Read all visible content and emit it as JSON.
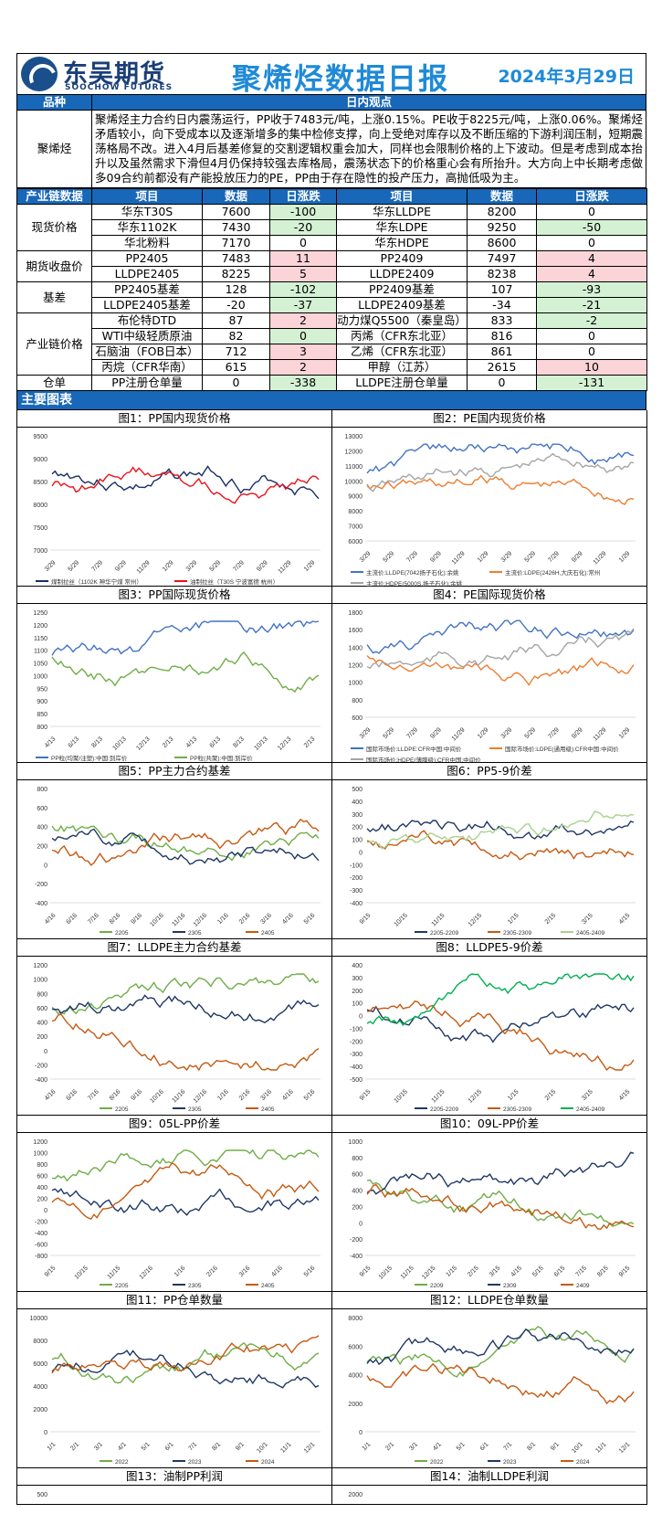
{
  "header": {
    "logo_cn": "东吴期货",
    "logo_en": "SOOCHOW FUTURES",
    "title": "聚烯烃数据日报",
    "date": "2024年3月29日"
  },
  "view": {
    "col1": "品种",
    "col2": "日内观点",
    "product": "聚烯烃",
    "text": "聚烯烃主力合约日内震荡运行，PP收于7483元/吨，上涨0.15%。PE收于8225元/吨，上涨0.06%。聚烯烃矛盾较小，向下受成本以及逐渐增多的集中检修支撑，向上受绝对库存以及不断压缩的下游利润压制，短期震荡格局不改。进入4月后基差修复的交割逻辑权重会加大，同样也会限制价格的上下波动。但是考虑到成本抬升以及虽然需求下滑但4月仍保持较强去库格局，震荡状态下的价格重心会有所抬升。大方向上中长期考虑做多09合约前都没有产能投放压力的PE，PP由于存在隐性的投产压力，高抛低吸为主。"
  },
  "table": {
    "headers": [
      "产业链数据",
      "项目",
      "数据",
      "日涨跌",
      "项目",
      "数据",
      "日涨跌"
    ],
    "groups": [
      {
        "name": "现货价格",
        "rows": [
          [
            "华东T30S",
            "7600",
            "-100",
            "g",
            "华东LLDPE",
            "8200",
            "0",
            ""
          ],
          [
            "华东1102K",
            "7430",
            "-20",
            "g",
            "华东LDPE",
            "9250",
            "-50",
            "g"
          ],
          [
            "华北粉料",
            "7170",
            "0",
            "",
            "华东HDPE",
            "8600",
            "0",
            ""
          ]
        ]
      },
      {
        "name": "期货收盘价",
        "rows": [
          [
            "PP2405",
            "7483",
            "11",
            "r",
            "PP2409",
            "7497",
            "4",
            "r"
          ],
          [
            "LLDPE2405",
            "8225",
            "5",
            "r",
            "LLDPE2409",
            "8238",
            "4",
            "r"
          ]
        ]
      },
      {
        "name": "基差",
        "rows": [
          [
            "PP2405基差",
            "128",
            "-102",
            "g",
            "PP2409基差",
            "107",
            "-93",
            "g"
          ],
          [
            "LLDPE2405基差",
            "-20",
            "-37",
            "g",
            "LLDPE2409基差",
            "-34",
            "-21",
            "g"
          ]
        ]
      },
      {
        "name": "产业链价格",
        "rows": [
          [
            "布伦特DTD",
            "87",
            "2",
            "r",
            "动力煤Q5500（秦皇岛）",
            "833",
            "-2",
            "g"
          ],
          [
            "WTI中级轻质原油",
            "82",
            "0",
            "g",
            "丙烯（CFR东北亚）",
            "816",
            "0",
            ""
          ],
          [
            "石脑油（FOB日本）",
            "712",
            "3",
            "r",
            "乙烯（CFR东北亚）",
            "861",
            "0",
            ""
          ],
          [
            "丙烷（CFR华南）",
            "615",
            "2",
            "r",
            "甲醇（江苏）",
            "2615",
            "10",
            "r"
          ]
        ]
      },
      {
        "name": "仓单",
        "rows": [
          [
            "PP注册仓单量",
            "0",
            "-338",
            "g",
            "LLDPE注册仓单量",
            "0",
            "-131",
            "g"
          ]
        ]
      }
    ]
  },
  "charts_section": "主要图表",
  "colors": {
    "blue": "#1867b8",
    "green_cell": "#d4f1d4",
    "red_cell": "#fbd4d8"
  },
  "charts": [
    {
      "caption": "图1：PP国内现货价格",
      "yticks": [
        "9500",
        "9000",
        "8500",
        "8000",
        "7500",
        "7000"
      ],
      "xticks": [
        "3/29",
        "5/29",
        "7/29",
        "9/29",
        "11/29",
        "1/29",
        "3/29",
        "5/29",
        "7/29",
        "9/29",
        "11/29",
        "1/29"
      ],
      "legend": [
        "煤制拉丝（1102K 神华宁煤 常州）",
        "油制拉丝（T30S 宁波富德 杭州）"
      ],
      "lcolors": [
        "#1a2e66",
        "#e8121b"
      ]
    },
    {
      "caption": "图2：PE国内现货价格",
      "yticks": [
        "13000",
        "12000",
        "11000",
        "10000",
        "9000",
        "8000",
        "7000",
        "6000"
      ],
      "xticks": [
        "3/29",
        "5/29",
        "7/29",
        "9/29",
        "11/29",
        "1/29",
        "3/29",
        "5/29",
        "7/29",
        "9/29",
        "11/29",
        "1/29"
      ],
      "legend": [
        "主流价:LLDPE(7042扬子石化):余姚",
        "主流价:LDPE(2426H,大庆石化):常州",
        "主流价:HDPE(5000S,扬子石化):余姚"
      ],
      "lcolors": [
        "#4472c4",
        "#ed7d31",
        "#a5a5a5"
      ]
    },
    {
      "caption": "图3：PP国际现货价格",
      "yticks": [
        "1250",
        "1200",
        "1150",
        "1100",
        "1050",
        "1000",
        "950",
        "900",
        "850",
        "800"
      ],
      "xticks": [
        "4/13",
        "6/13",
        "8/13",
        "10/13",
        "12/13",
        "2/13",
        "4/13",
        "6/13",
        "8/13",
        "10/13",
        "12/13",
        "2/13"
      ],
      "legend": [
        "PP粒(均聚/注塑):中国:到岸价",
        "PP粒(共聚):中国:到岸价"
      ],
      "lcolors": [
        "#4472c4",
        "#70ad47"
      ]
    },
    {
      "caption": "图4：PE国际现货价格",
      "yticks": [
        "1800",
        "1600",
        "1400",
        "1200",
        "1000",
        "800",
        "600"
      ],
      "xticks": [
        "3/29",
        "5/29",
        "7/29",
        "9/29",
        "11/29",
        "1/29",
        "3/29",
        "5/29",
        "7/29",
        "9/29",
        "11/29",
        "1/29"
      ],
      "legend": [
        "国际市场价:LLDPE:CFR中国:中间价",
        "国际市场价:LDPE(通用级):CFR中国:中间价",
        "国际市场价:HDPE(薄膜级):CFR中国:中间价"
      ],
      "lcolors": [
        "#4472c4",
        "#ed7d31",
        "#a5a5a5"
      ]
    },
    {
      "caption": "图5：PP主力合约基差",
      "yticks": [
        "800",
        "600",
        "400",
        "200",
        "0",
        "-200",
        "-400"
      ],
      "xticks": [
        "4/16",
        "6/16",
        "7/16",
        "8/16",
        "9/16",
        "10/16",
        "11/16",
        "12/16",
        "1/16",
        "2/16",
        "3/16",
        "4/16",
        "5/16"
      ],
      "legend": [
        "2205",
        "2305",
        "2405"
      ],
      "lcolors": [
        "#70ad47",
        "#203864",
        "#c55a11"
      ]
    },
    {
      "caption": "图6：PP5-9价差",
      "yticks": [
        "500",
        "400",
        "300",
        "200",
        "100",
        "0",
        "-100",
        "-200",
        "-300",
        "-400"
      ],
      "xticks": [
        "9/15",
        "10/15",
        "11/15",
        "12/15",
        "1/15",
        "2/15",
        "3/15",
        "4/15"
      ],
      "legend": [
        "2205-2209",
        "2305-2309",
        "2405-2409"
      ],
      "lcolors": [
        "#203864",
        "#c55a11",
        "#a9d18e"
      ]
    },
    {
      "caption": "图7：LLDPE主力合约基差",
      "yticks": [
        "1200",
        "1000",
        "800",
        "600",
        "400",
        "200",
        "0",
        "-200",
        "-400"
      ],
      "xticks": [
        "4/16",
        "6/16",
        "7/16",
        "8/16",
        "9/16",
        "10/16",
        "11/16",
        "12/16",
        "1/16",
        "2/16",
        "3/16",
        "4/16",
        "5/16"
      ],
      "legend": [
        "2205",
        "2305",
        "2405"
      ],
      "lcolors": [
        "#70ad47",
        "#203864",
        "#c55a11"
      ]
    },
    {
      "caption": "图8：LLDPE5-9价差",
      "yticks": [
        "400",
        "300",
        "200",
        "100",
        "0",
        "-100",
        "-200",
        "-300",
        "-400",
        "-500"
      ],
      "xticks": [
        "9/15",
        "10/15",
        "11/15",
        "12/15",
        "1/15",
        "2/15",
        "3/15",
        "4/15"
      ],
      "legend": [
        "2205-2209",
        "2305-2309",
        "2405-2409"
      ],
      "lcolors": [
        "#203864",
        "#c55a11",
        "#00b050"
      ]
    },
    {
      "caption": "图9：05L-PP价差",
      "yticks": [
        "1200",
        "1000",
        "800",
        "600",
        "400",
        "200",
        "0",
        "-200",
        "-400",
        "-600",
        "-800"
      ],
      "xticks": [
        "9/15",
        "10/15",
        "11/15",
        "12/16",
        "1/16",
        "2/16",
        "3/16",
        "4/16",
        "5/16"
      ],
      "legend": [
        "2205",
        "2305",
        "2405"
      ],
      "lcolors": [
        "#70ad47",
        "#203864",
        "#c55a11"
      ]
    },
    {
      "caption": "图10：09L-PP价差",
      "yticks": [
        "1000",
        "800",
        "600",
        "400",
        "200",
        "0",
        "-200",
        "-400"
      ],
      "xticks": [
        "9/15",
        "10/15",
        "11/15",
        "12/15",
        "1/15",
        "2/15",
        "3/15",
        "4/15",
        "5/15",
        "6/15",
        "7/15",
        "8/15",
        "9/15"
      ],
      "legend": [
        "2209",
        "2309",
        "2409"
      ],
      "lcolors": [
        "#70ad47",
        "#203864",
        "#c55a11"
      ]
    },
    {
      "caption": "图11：PP仓单数量",
      "yticks": [
        "10000",
        "8000",
        "6000",
        "4000",
        "2000",
        "0"
      ],
      "xticks": [
        "1/1",
        "2/1",
        "3/1",
        "4/1",
        "5/1",
        "6/1",
        "7/1",
        "8/1",
        "9/1",
        "10/1",
        "11/1",
        "12/1"
      ],
      "legend": [
        "2022",
        "2023",
        "2024"
      ],
      "lcolors": [
        "#70ad47",
        "#203864",
        "#c55a11"
      ]
    },
    {
      "caption": "图12：LLDPE仓单数量",
      "yticks": [
        "8000",
        "6000",
        "4000",
        "2000",
        "0"
      ],
      "xticks": [
        "1/1",
        "2/1",
        "3/1",
        "4/1",
        "5/1",
        "6/1",
        "7/1",
        "8/1",
        "9/1",
        "10/1",
        "11/1",
        "12/1"
      ],
      "legend": [
        "2022",
        "2023",
        "2024"
      ],
      "lcolors": [
        "#70ad47",
        "#203864",
        "#c55a11"
      ]
    },
    {
      "caption": "图13：油制PP利润",
      "yticks": [
        "500"
      ],
      "xticks": [],
      "legend": [],
      "lcolors": []
    },
    {
      "caption": "图14：油制LLDPE利润",
      "yticks": [
        "2000",
        "1500"
      ],
      "xticks": [],
      "legend": [],
      "lcolors": []
    }
  ]
}
